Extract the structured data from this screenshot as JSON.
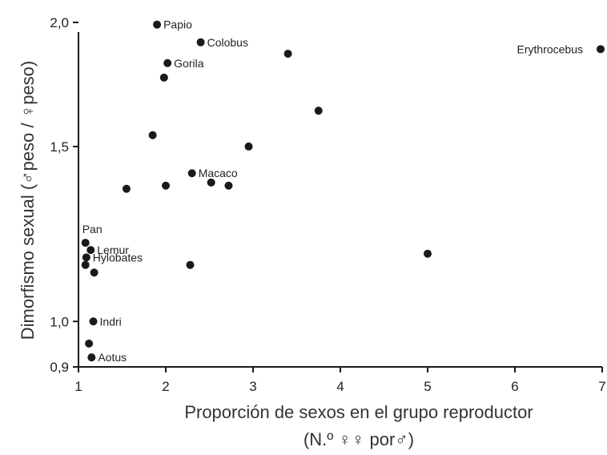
{
  "chart_data": {
    "type": "scatter",
    "xlabel": "Proporción de sexos en el grupo reproductor",
    "xlabel_line2": "(N.º ♀♀ por♂)",
    "ylabel": "Dimorfismo sexual (♂peso / ♀peso)",
    "xlim": [
      1,
      7
    ],
    "ylim": [
      0.9,
      2.0
    ],
    "y_scale": "log",
    "xticks": [
      1,
      2,
      3,
      4,
      5,
      6,
      7
    ],
    "xtick_labels": [
      "1",
      "2",
      "3",
      "4",
      "5",
      "6",
      "7"
    ],
    "yticks": [
      0.9,
      1.0,
      1.5,
      2.0
    ],
    "ytick_labels": [
      "0,9",
      "1,0",
      "1,5",
      "2,0"
    ],
    "grid": false,
    "color": "#1a1a1a",
    "points": [
      {
        "x": 1.9,
        "y": 1.99,
        "label": "Papio"
      },
      {
        "x": 2.4,
        "y": 1.91,
        "label": "Colobus"
      },
      {
        "x": 7.0,
        "y": 1.88,
        "label": "Erythrocebus"
      },
      {
        "x": 3.4,
        "y": 1.86,
        "label": ""
      },
      {
        "x": 2.02,
        "y": 1.82,
        "label": "Gorila"
      },
      {
        "x": 1.98,
        "y": 1.76,
        "label": ""
      },
      {
        "x": 3.75,
        "y": 1.63,
        "label": ""
      },
      {
        "x": 1.85,
        "y": 1.54,
        "label": ""
      },
      {
        "x": 2.95,
        "y": 1.5,
        "label": ""
      },
      {
        "x": 2.3,
        "y": 1.41,
        "label": "Macaco"
      },
      {
        "x": 2.52,
        "y": 1.38,
        "label": ""
      },
      {
        "x": 2.72,
        "y": 1.37,
        "label": ""
      },
      {
        "x": 2.0,
        "y": 1.37,
        "label": ""
      },
      {
        "x": 1.55,
        "y": 1.36,
        "label": ""
      },
      {
        "x": 1.08,
        "y": 1.2,
        "label": "Pan"
      },
      {
        "x": 1.14,
        "y": 1.18,
        "label": "Lemur"
      },
      {
        "x": 1.09,
        "y": 1.16,
        "label": "Hylobates"
      },
      {
        "x": 5.0,
        "y": 1.17,
        "label": ""
      },
      {
        "x": 1.08,
        "y": 1.14,
        "label": ""
      },
      {
        "x": 2.28,
        "y": 1.14,
        "label": ""
      },
      {
        "x": 1.18,
        "y": 1.12,
        "label": ""
      },
      {
        "x": 1.17,
        "y": 1.0,
        "label": "Indri"
      },
      {
        "x": 1.12,
        "y": 0.95,
        "label": ""
      },
      {
        "x": 1.15,
        "y": 0.92,
        "label": "Aotus"
      }
    ]
  }
}
